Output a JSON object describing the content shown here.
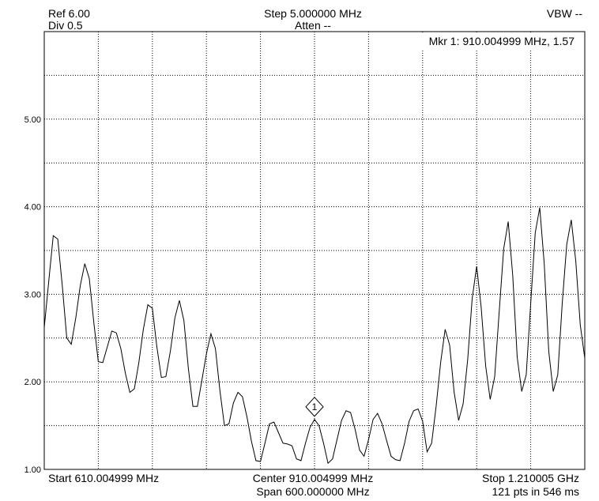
{
  "header": {
    "ref": "Ref 6.00",
    "div": "Div 0.5",
    "step": "Step 5.000000 MHz",
    "atten": "Atten --",
    "vbw": "VBW --",
    "marker_readout": "Mkr 1: 910.004999 MHz, 1.57"
  },
  "footer": {
    "start": "Start 610.004999 MHz",
    "center": "Center 910.004999 MHz",
    "span": "Span 600.000000 MHz",
    "stop": "Stop 1.210005 GHz",
    "points": "121 pts in 546 ms"
  },
  "colors": {
    "trace": "#000000",
    "grid": "#000000",
    "background": "#ffffff"
  },
  "chart_data": {
    "type": "line",
    "x_unit": "MHz",
    "x_start": 610.004999,
    "x_stop": 1210.005,
    "x_step": 5.0,
    "ylim": [
      1.0,
      6.0
    ],
    "y_divisions": 10,
    "x_divisions": 10,
    "grid": "dotted",
    "yticks": [
      "1.00",
      "2.00",
      "3.00",
      "4.00",
      "5.00"
    ],
    "series": [
      {
        "values": [
          2.62,
          3.15,
          3.67,
          3.63,
          3.1,
          2.5,
          2.43,
          2.73,
          3.1,
          3.35,
          3.18,
          2.68,
          2.23,
          2.22,
          2.4,
          2.58,
          2.56,
          2.38,
          2.1,
          1.88,
          1.92,
          2.22,
          2.6,
          2.88,
          2.84,
          2.4,
          2.05,
          2.06,
          2.35,
          2.73,
          2.93,
          2.7,
          2.15,
          1.72,
          1.72,
          2.02,
          2.32,
          2.55,
          2.38,
          1.9,
          1.5,
          1.52,
          1.76,
          1.88,
          1.83,
          1.6,
          1.32,
          1.1,
          1.09,
          1.3,
          1.52,
          1.54,
          1.42,
          1.3,
          1.29,
          1.27,
          1.12,
          1.1,
          1.3,
          1.48,
          1.57,
          1.5,
          1.3,
          1.07,
          1.12,
          1.34,
          1.56,
          1.67,
          1.65,
          1.46,
          1.22,
          1.15,
          1.34,
          1.57,
          1.64,
          1.52,
          1.33,
          1.15,
          1.11,
          1.1,
          1.3,
          1.55,
          1.67,
          1.69,
          1.55,
          1.2,
          1.3,
          1.72,
          2.22,
          2.6,
          2.42,
          1.88,
          1.56,
          1.75,
          2.25,
          2.95,
          3.32,
          2.85,
          2.18,
          1.8,
          2.06,
          2.8,
          3.52,
          3.83,
          3.22,
          2.28,
          1.89,
          2.08,
          2.9,
          3.7,
          3.99,
          3.35,
          2.35,
          1.89,
          2.08,
          2.9,
          3.57,
          3.85,
          3.38,
          2.65,
          2.27
        ]
      }
    ],
    "marker": {
      "label": "1",
      "x": 910.004999,
      "y": 1.57
    }
  }
}
